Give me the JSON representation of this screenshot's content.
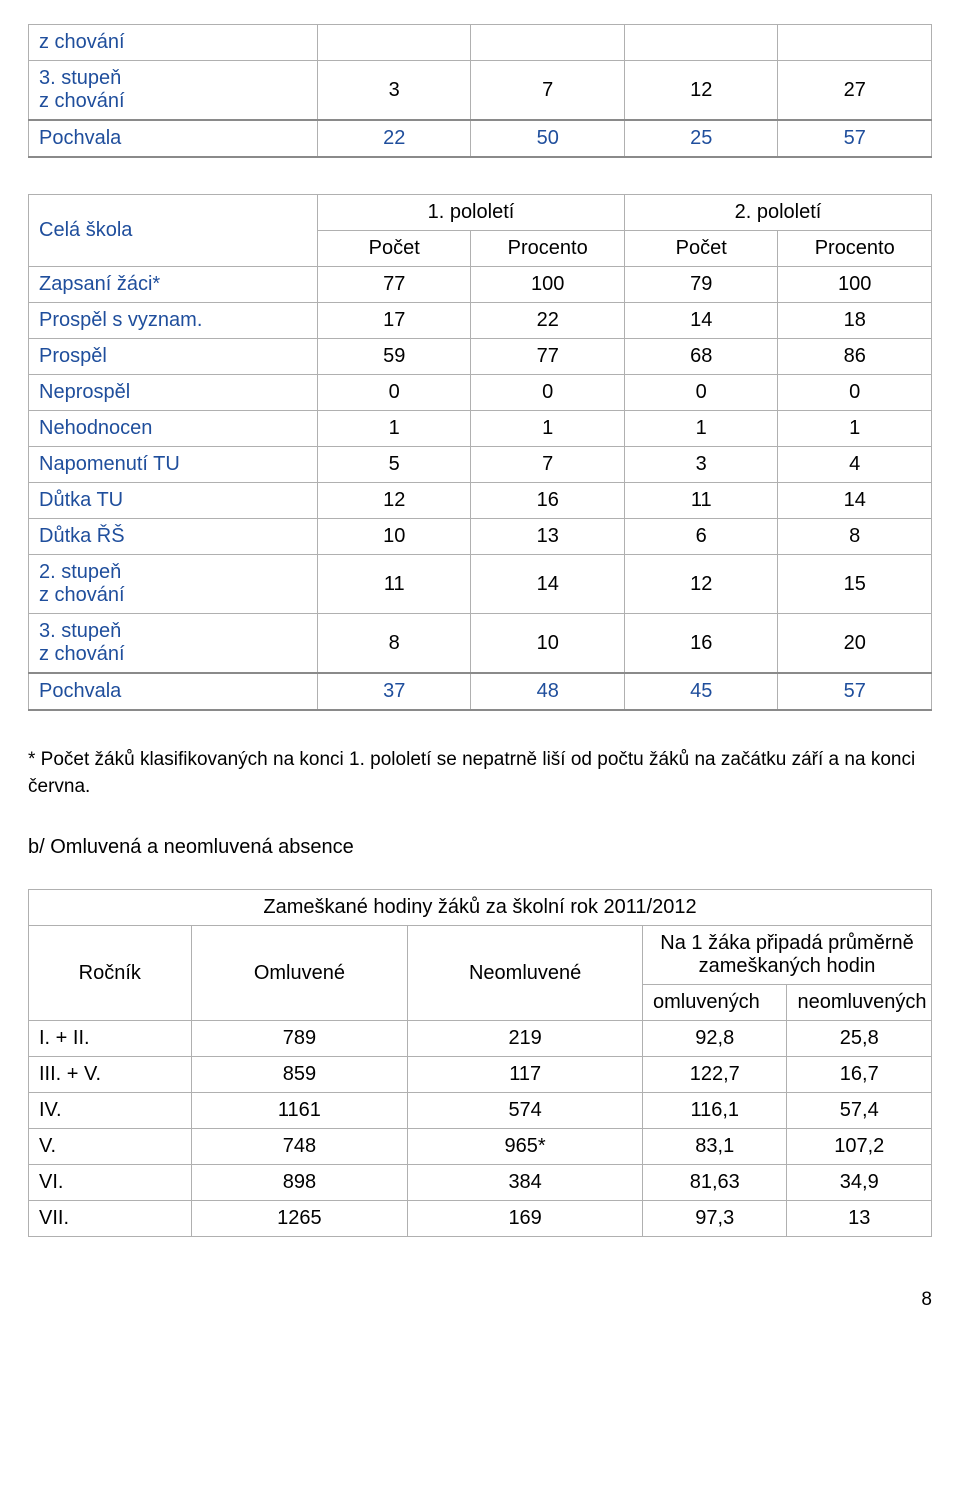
{
  "table1": {
    "rows": [
      {
        "label": "z chování",
        "v": [
          "",
          "",
          "",
          ""
        ]
      },
      {
        "label": "3. stupeň\nz chování",
        "v": [
          "3",
          "7",
          "12",
          "27"
        ]
      }
    ],
    "pochvala": {
      "label": "Pochvala",
      "v": [
        "22",
        "50",
        "25",
        "57"
      ]
    }
  },
  "table2": {
    "school_label": "Celá škola",
    "header_top": [
      "1. pololetí",
      "2. pololetí"
    ],
    "header_sub": [
      "Počet",
      "Procento",
      "Počet",
      "Procento"
    ],
    "rows": [
      {
        "label": "Zapsaní žáci*",
        "v": [
          "77",
          "100",
          "79",
          "100"
        ]
      },
      {
        "label": "Prospěl s vyznam.",
        "v": [
          "17",
          "22",
          "14",
          "18"
        ]
      },
      {
        "label": "Prospěl",
        "v": [
          "59",
          "77",
          "68",
          "86"
        ]
      },
      {
        "label": "Neprospěl",
        "v": [
          "0",
          "0",
          "0",
          "0"
        ]
      },
      {
        "label": "Nehodnocen",
        "v": [
          "1",
          "1",
          "1",
          "1"
        ]
      },
      {
        "label": "Napomenutí TU",
        "v": [
          "5",
          "7",
          "3",
          "4"
        ]
      },
      {
        "label": "Důtka TU",
        "v": [
          "12",
          "16",
          "11",
          "14"
        ]
      },
      {
        "label": "Důtka ŘŠ",
        "v": [
          "10",
          "13",
          "6",
          "8"
        ]
      },
      {
        "label": "2. stupeň\nz chování",
        "v": [
          "11",
          "14",
          "12",
          "15"
        ]
      },
      {
        "label": "3. stupeň\nz chování",
        "v": [
          "8",
          "10",
          "16",
          "20"
        ]
      }
    ],
    "pochvala": {
      "label": "Pochvala",
      "v": [
        "37",
        "48",
        "45",
        "57"
      ]
    }
  },
  "note_text": "* Počet žáků klasifikovaných na konci 1. pololetí se nepatrně liší od počtu žáků na začátku září a na konci června.",
  "section_b": "b/ Omluvená a neomluvená absence",
  "table3": {
    "title": "Zameškané hodiny žáků za školní rok 2011/2012",
    "col_rocnik": "Ročník",
    "col_omluvene": "Omluvené",
    "col_neomluvene": "Neomluvené",
    "col_avg_title": "Na 1 žáka připadá průměrně zameškaných hodin",
    "col_avg_sub": [
      "omluvených",
      "neomluvených"
    ],
    "rows": [
      {
        "v": [
          "I. + II.",
          "789",
          "219",
          "92,8",
          "25,8"
        ]
      },
      {
        "v": [
          "III. + V.",
          "859",
          "117",
          "122,7",
          "16,7"
        ]
      },
      {
        "v": [
          "IV.",
          "1161",
          "574",
          "116,1",
          "57,4"
        ]
      },
      {
        "v": [
          "V.",
          "748",
          "965*",
          "83,1",
          "107,2"
        ]
      },
      {
        "v": [
          "VI.",
          "898",
          "384",
          "81,63",
          "34,9"
        ]
      },
      {
        "v": [
          "VII.",
          "1265",
          "169",
          "97,3",
          "13"
        ]
      }
    ]
  },
  "page_number": "8"
}
